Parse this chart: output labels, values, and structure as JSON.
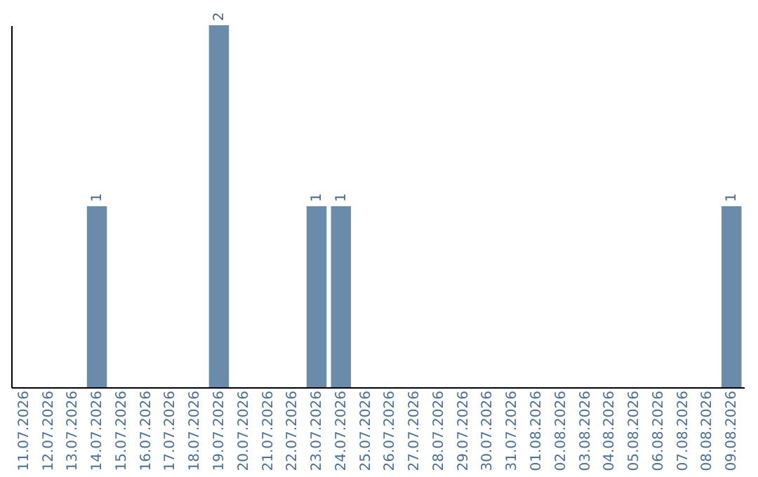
{
  "chart_data": {
    "type": "bar",
    "categories": [
      "11.07.2026",
      "12.07.2026",
      "13.07.2026",
      "14.07.2026",
      "15.07.2026",
      "16.07.2026",
      "17.07.2026",
      "18.07.2026",
      "19.07.2026",
      "20.07.2026",
      "21.07.2026",
      "22.07.2026",
      "23.07.2026",
      "24.07.2026",
      "25.07.2026",
      "26.07.2026",
      "27.07.2026",
      "28.07.2026",
      "29.07.2026",
      "30.07.2026",
      "31.07.2026",
      "01.08.2026",
      "02.08.2026",
      "03.08.2026",
      "04.08.2026",
      "05.08.2026",
      "06.08.2026",
      "07.08.2026",
      "08.08.2026",
      "09.08.2026"
    ],
    "values": [
      0,
      0,
      0,
      1,
      0,
      0,
      0,
      0,
      2,
      0,
      0,
      0,
      1,
      1,
      0,
      0,
      0,
      0,
      0,
      0,
      0,
      0,
      0,
      0,
      0,
      0,
      0,
      0,
      0,
      1
    ],
    "value_labels": [
      null,
      null,
      null,
      "1",
      null,
      null,
      null,
      null,
      "2",
      null,
      null,
      null,
      "1",
      "1",
      null,
      null,
      null,
      null,
      null,
      null,
      null,
      null,
      null,
      null,
      null,
      null,
      null,
      null,
      null,
      "1"
    ],
    "color": "#6b8bab",
    "grid": false
  }
}
